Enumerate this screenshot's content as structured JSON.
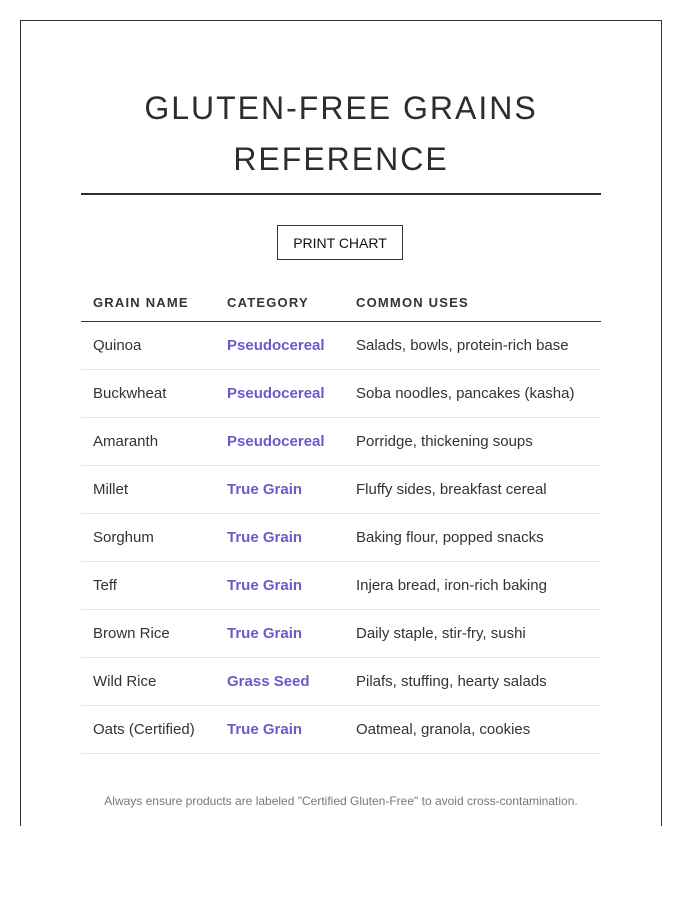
{
  "title": "GLUTEN-FREE GRAINS REFERENCE",
  "print_label": "PRINT CHART",
  "columns": [
    "GRAIN NAME",
    "CATEGORY",
    "COMMON USES"
  ],
  "rows": [
    {
      "name": "Quinoa",
      "category": "Pseudocereal",
      "uses": "Salads, bowls, protein-rich base"
    },
    {
      "name": "Buckwheat",
      "category": "Pseudocereal",
      "uses": "Soba noodles, pancakes (kasha)"
    },
    {
      "name": "Amaranth",
      "category": "Pseudocereal",
      "uses": "Porridge, thickening soups"
    },
    {
      "name": "Millet",
      "category": "True Grain",
      "uses": "Fluffy sides, breakfast cereal"
    },
    {
      "name": "Sorghum",
      "category": "True Grain",
      "uses": "Baking flour, popped snacks"
    },
    {
      "name": "Teff",
      "category": "True Grain",
      "uses": "Injera bread, iron-rich baking"
    },
    {
      "name": "Brown Rice",
      "category": "True Grain",
      "uses": "Daily staple, stir-fry, sushi"
    },
    {
      "name": "Wild Rice",
      "category": "Grass Seed",
      "uses": "Pilafs, stuffing, hearty salads"
    },
    {
      "name": "Oats (Certified)",
      "category": "True Grain",
      "uses": "Oatmeal, granola, cookies"
    }
  ],
  "footer_note": "Always ensure products are labeled \"Certified Gluten-Free\" to avoid cross-contamination.",
  "colors": {
    "category": "#6a5acd",
    "text": "#333333"
  }
}
